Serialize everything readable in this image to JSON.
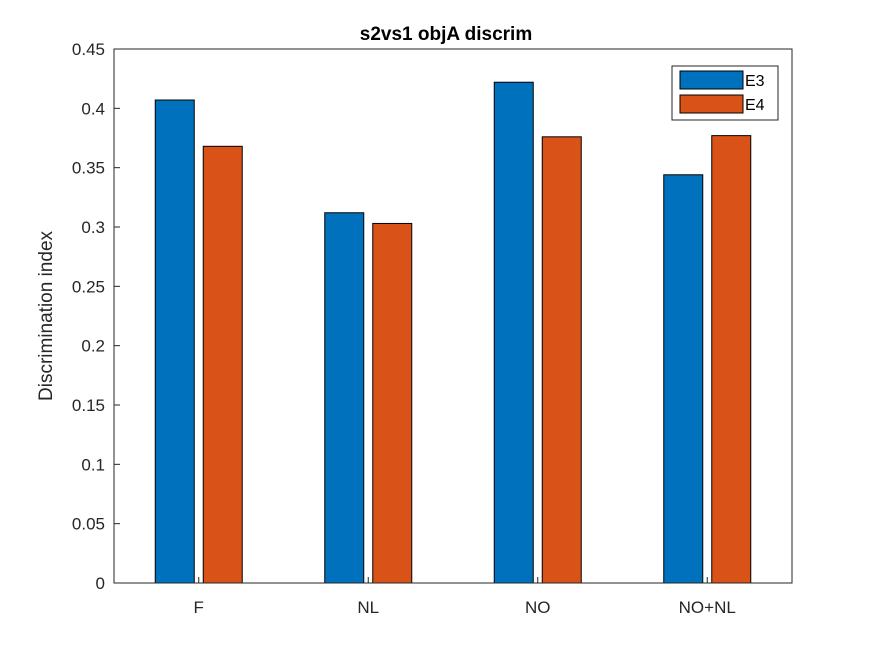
{
  "chart_data": {
    "type": "bar",
    "title": "s2vs1 objA discrim",
    "xlabel": "",
    "ylabel": "Discrimination index",
    "categories": [
      "F",
      "NL",
      "NO",
      "NO+NL"
    ],
    "series": [
      {
        "name": "E3",
        "color": "#0072BD",
        "values": [
          0.407,
          0.312,
          0.422,
          0.344
        ]
      },
      {
        "name": "E4",
        "color": "#D95319",
        "values": [
          0.368,
          0.303,
          0.376,
          0.377
        ]
      }
    ],
    "ylim": [
      0,
      0.45
    ],
    "yticks": [
      0,
      0.05,
      0.1,
      0.15,
      0.2,
      0.25,
      0.3,
      0.35,
      0.4,
      0.45
    ],
    "ytick_labels": [
      "0",
      "0.05",
      "0.1",
      "0.15",
      "0.2",
      "0.25",
      "0.3",
      "0.35",
      "0.4",
      "0.45"
    ],
    "grid": false,
    "legend_position": "top-right"
  }
}
